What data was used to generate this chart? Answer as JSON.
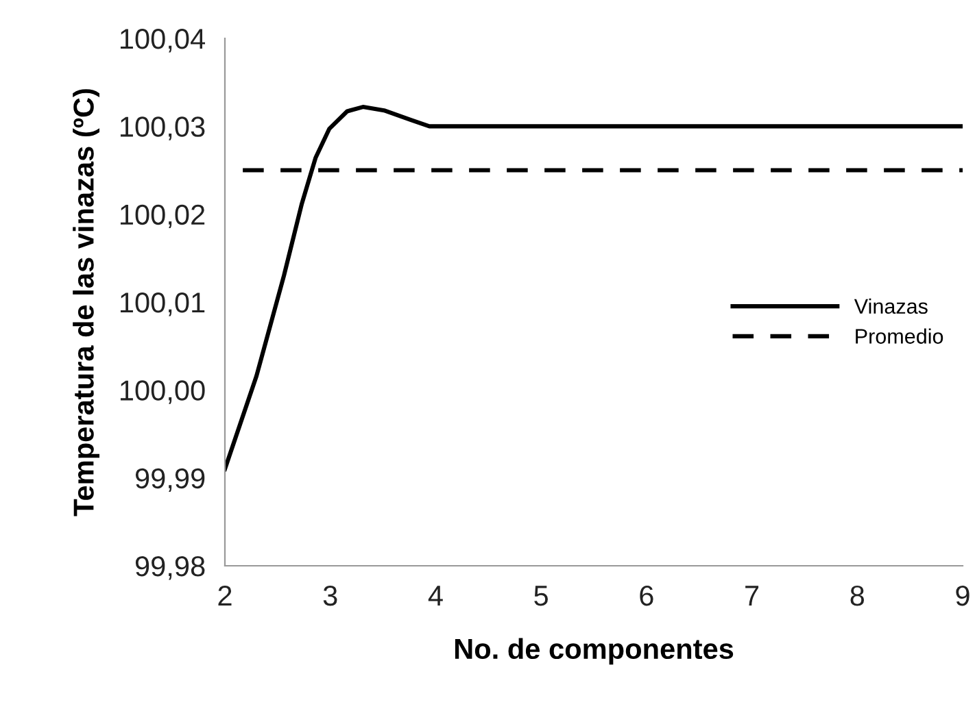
{
  "chart_data": {
    "type": "line",
    "xlabel": "No. de componentes",
    "ylabel": "Temperatura de las vinazas (ºC)",
    "series": [
      {
        "name": "Vinazas",
        "color": "#000000",
        "line_style": "solid",
        "x": [
          2,
          2.3,
          2.56,
          2.73,
          2.86,
          2.99,
          3.16,
          3.31,
          3.51,
          3.77,
          3.94,
          5,
          6,
          7,
          8,
          9
        ],
        "values": [
          99.991,
          100.0016,
          100.013,
          100.0212,
          100.0264,
          100.0297,
          100.0317,
          100.0322,
          100.0318,
          100.0307,
          100.03,
          100.03,
          100.03,
          100.03,
          100.03,
          100.03
        ]
      },
      {
        "name": "Promedio",
        "color": "#000000",
        "line_style": "dashed",
        "x": [
          2.17,
          9
        ],
        "values": [
          100.025,
          100.025
        ]
      }
    ],
    "xlim": [
      2,
      9
    ],
    "xticks": [
      2,
      3,
      4,
      5,
      6,
      7,
      8,
      9
    ],
    "ylim": [
      99.98,
      100.04
    ],
    "yticks": [
      {
        "value": 99.98,
        "label": "99,98"
      },
      {
        "value": 99.99,
        "label": "99,99"
      },
      {
        "value": 100.0,
        "label": "100,00"
      },
      {
        "value": 100.01,
        "label": "100,01"
      },
      {
        "value": 100.02,
        "label": "100,02"
      },
      {
        "value": 100.03,
        "label": "100,03"
      },
      {
        "value": 100.04,
        "label": "100,04"
      }
    ],
    "grid": false,
    "legend": "center right",
    "marker": "none"
  }
}
